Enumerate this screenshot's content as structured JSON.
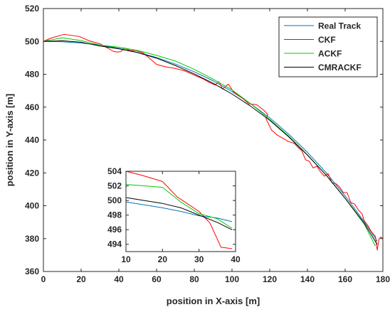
{
  "chart_data": [
    {
      "type": "line",
      "xlabel": "position in X-axis [m]",
      "ylabel": "position in Y-axis [m]",
      "xlim": [
        0,
        180
      ],
      "ylim": [
        360,
        520
      ],
      "xticks": [
        0,
        20,
        40,
        60,
        80,
        100,
        120,
        140,
        160,
        180
      ],
      "yticks": [
        360,
        380,
        400,
        420,
        440,
        460,
        480,
        500,
        520
      ],
      "grid": false,
      "legend_position": "top-right",
      "series": [
        {
          "name": "Real Track",
          "color": "#0072BD",
          "x": [
            0,
            10,
            20,
            30,
            40,
            50,
            60,
            70,
            80,
            90,
            100,
            110,
            120,
            130,
            140,
            150,
            160,
            170,
            177
          ],
          "y": [
            500,
            499.8,
            499,
            497.8,
            495.8,
            493.3,
            490.2,
            486.2,
            481.5,
            476,
            469.5,
            462,
            453.5,
            443.6,
            432.5,
            420,
            406,
            390.5,
            378.5
          ]
        },
        {
          "name": "CKF",
          "color": "#FF0000",
          "x": [
            0,
            4,
            11,
            19,
            24,
            30,
            34,
            37,
            39,
            41,
            43,
            46,
            49,
            53,
            58,
            60,
            65,
            70,
            75,
            80,
            85,
            88,
            91,
            93,
            95,
            98,
            101,
            105,
            109,
            113,
            117,
            119,
            118,
            121,
            124,
            127,
            130,
            133,
            135,
            137,
            139,
            141,
            143,
            145,
            147,
            149,
            151,
            153,
            155,
            157,
            159,
            161,
            163,
            165,
            167,
            169,
            170,
            172,
            174,
            176,
            177,
            178,
            179,
            180
          ],
          "y": [
            500,
            502,
            504.3,
            503,
            500.5,
            498.5,
            496,
            494,
            493.5,
            493.8,
            496,
            494.5,
            494.5,
            493,
            488,
            486,
            484.5,
            483.5,
            482,
            479.5,
            477,
            475,
            473.5,
            475.5,
            471,
            474,
            469,
            466,
            462,
            461.5,
            458,
            455.5,
            453,
            446,
            443,
            441,
            439,
            438,
            435.5,
            433.5,
            428,
            427,
            423,
            424,
            420.5,
            418,
            419.5,
            414,
            413.5,
            411.5,
            408,
            408,
            402,
            401,
            397.5,
            395,
            391,
            388,
            384,
            381.5,
            373,
            380,
            381,
            380
          ]
        },
        {
          "name": "ACKF",
          "color": "#00CC00",
          "x": [
            0,
            10,
            20,
            30,
            40,
            50,
            60,
            70,
            80,
            90,
            100,
            110,
            120,
            130,
            140,
            150,
            160,
            170,
            176
          ],
          "y": [
            500,
            502.2,
            500.5,
            497.8,
            496.5,
            494.5,
            491.5,
            488,
            483,
            477,
            470.5,
            462,
            452.5,
            442.5,
            431,
            418.5,
            404.5,
            389,
            375.5
          ]
        },
        {
          "name": "CMRACKF",
          "color": "#000000",
          "x": [
            0,
            10,
            20,
            30,
            40,
            50,
            60,
            70,
            80,
            90,
            100,
            110,
            120,
            130,
            140,
            150,
            160,
            170,
            177
          ],
          "y": [
            500,
            500.4,
            499.5,
            497.2,
            495.5,
            493.2,
            489.8,
            485.3,
            480.2,
            474.5,
            468,
            460.5,
            452,
            442,
            430.8,
            418.5,
            404.5,
            389.5,
            376.5
          ]
        }
      ]
    },
    {
      "type": "line",
      "xlim": [
        10,
        40
      ],
      "ylim": [
        493,
        504
      ],
      "xticks": [
        10,
        20,
        30,
        40
      ],
      "yticks": [
        494,
        496,
        498,
        500,
        502,
        504
      ],
      "grid": false,
      "legend_position": "none",
      "series": [
        {
          "color": "#0072BD",
          "x": [
            10,
            15,
            20,
            25,
            30,
            35,
            39
          ],
          "y": [
            499.8,
            499.4,
            499.0,
            498.5,
            497.9,
            497.6,
            497.1
          ]
        },
        {
          "color": "#FF0000",
          "x": [
            10,
            14,
            20,
            24,
            30,
            33,
            36,
            39
          ],
          "y": [
            504.3,
            503.5,
            502.6,
            500.5,
            498.5,
            496.9,
            493.6,
            493.4
          ]
        },
        {
          "color": "#00CC00",
          "x": [
            10,
            15,
            20,
            25,
            30,
            35,
            39
          ],
          "y": [
            502.2,
            502.0,
            501.8,
            499.8,
            498.2,
            497.5,
            496.2
          ]
        },
        {
          "color": "#000000",
          "x": [
            10,
            15,
            20,
            25,
            30,
            35,
            39
          ],
          "y": [
            500.4,
            500.0,
            499.6,
            499.0,
            498.0,
            497.0,
            496.0
          ]
        }
      ]
    }
  ]
}
